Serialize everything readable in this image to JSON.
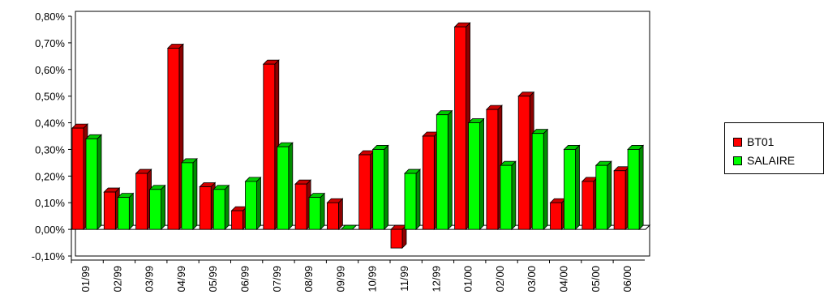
{
  "chart_data": {
    "type": "bar",
    "categories": [
      "01/99",
      "02/99",
      "03/99",
      "04/99",
      "05/99",
      "06/99",
      "07/99",
      "08/99",
      "09/99",
      "10/99",
      "11/99",
      "12/99",
      "01/00",
      "02/00",
      "03/00",
      "04/00",
      "05/00",
      "06/00"
    ],
    "series": [
      {
        "name": "BT01",
        "color": "#ff0000",
        "values": [
          0.38,
          0.14,
          0.21,
          0.68,
          0.16,
          0.07,
          0.62,
          0.17,
          0.1,
          0.28,
          -0.07,
          0.35,
          0.76,
          0.45,
          0.5,
          0.1,
          0.18,
          0.22
        ]
      },
      {
        "name": "SALAIRE",
        "color": "#00ff00",
        "values": [
          0.34,
          0.12,
          0.15,
          0.25,
          0.15,
          0.18,
          0.31,
          0.12,
          0.0,
          0.3,
          0.21,
          0.43,
          0.4,
          0.24,
          0.36,
          0.3,
          0.24,
          0.3
        ]
      }
    ],
    "y_ticks": [
      "0,80%",
      "0,70%",
      "0,60%",
      "0,50%",
      "0,40%",
      "0,30%",
      "0,20%",
      "0,10%",
      "0,00%",
      "-0,10%"
    ],
    "ylim": [
      -0.1,
      0.8
    ],
    "grid": false,
    "legend_position": "right",
    "title": "",
    "xlabel": "",
    "ylabel": ""
  },
  "legend": {
    "items": [
      {
        "label": "BT01",
        "color": "#ff0000"
      },
      {
        "label": "SALAIRE",
        "color": "#00ff00"
      }
    ]
  }
}
